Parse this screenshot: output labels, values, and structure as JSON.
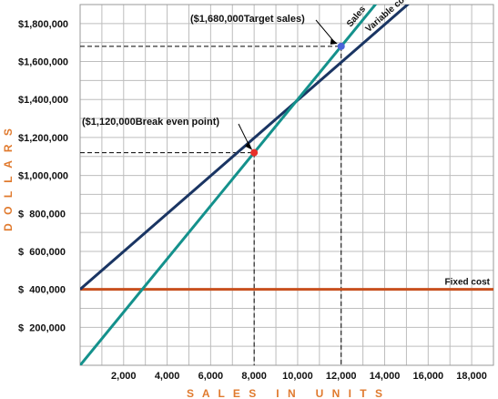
{
  "chart_data": {
    "type": "line",
    "xlabel": "S A L E S   I N   U N I T S",
    "ylabel": "D O L L A R S",
    "xlim": [
      0,
      19000
    ],
    "ylim": [
      0,
      1900000
    ],
    "x_ticks": [
      2000,
      4000,
      6000,
      8000,
      10000,
      12000,
      14000,
      16000,
      18000
    ],
    "x_tick_labels": [
      "2,000",
      "4,000",
      "6,000",
      "8,000",
      "10,000",
      "12,000",
      "14,000",
      "16,000",
      "18,000"
    ],
    "y_ticks": [
      200000,
      400000,
      600000,
      800000,
      1000000,
      1200000,
      1400000,
      1600000,
      1800000
    ],
    "y_tick_labels": [
      "$  200,000",
      "$  400,000",
      "$  600,000",
      "$  800,000",
      "$1,000,000",
      "$1,200,000",
      "$1,400,000",
      "$1,600,000",
      "$1,800,000"
    ],
    "grid": true,
    "series": [
      {
        "name": "Sales",
        "color": "#14918c",
        "x": [
          0,
          13800
        ],
        "y": [
          0,
          1932000
        ]
      },
      {
        "name": "Variable cost",
        "color": "#1a3563",
        "x": [
          0,
          16500
        ],
        "y": [
          400000,
          2044000
        ]
      },
      {
        "name": "Fixed cost",
        "color": "#c8501e",
        "x": [
          0,
          19000
        ],
        "y": [
          400000,
          400000
        ]
      }
    ],
    "points": [
      {
        "name": "break-even",
        "x": 8000,
        "y": 1120000,
        "color": "#e8302a"
      },
      {
        "name": "target-sales",
        "x": 12000,
        "y": 1680000,
        "color": "#4a63d8"
      }
    ],
    "annotations": [
      {
        "text": "($1,680,000Target sales)",
        "x": 12000,
        "y": 1680000
      },
      {
        "text": "($1,120,000Break even point)",
        "x": 8000,
        "y": 1120000
      }
    ],
    "colors": {
      "grid": "#bdbdbd",
      "axis_title": "#e07a2e",
      "guide": "#000000"
    }
  }
}
